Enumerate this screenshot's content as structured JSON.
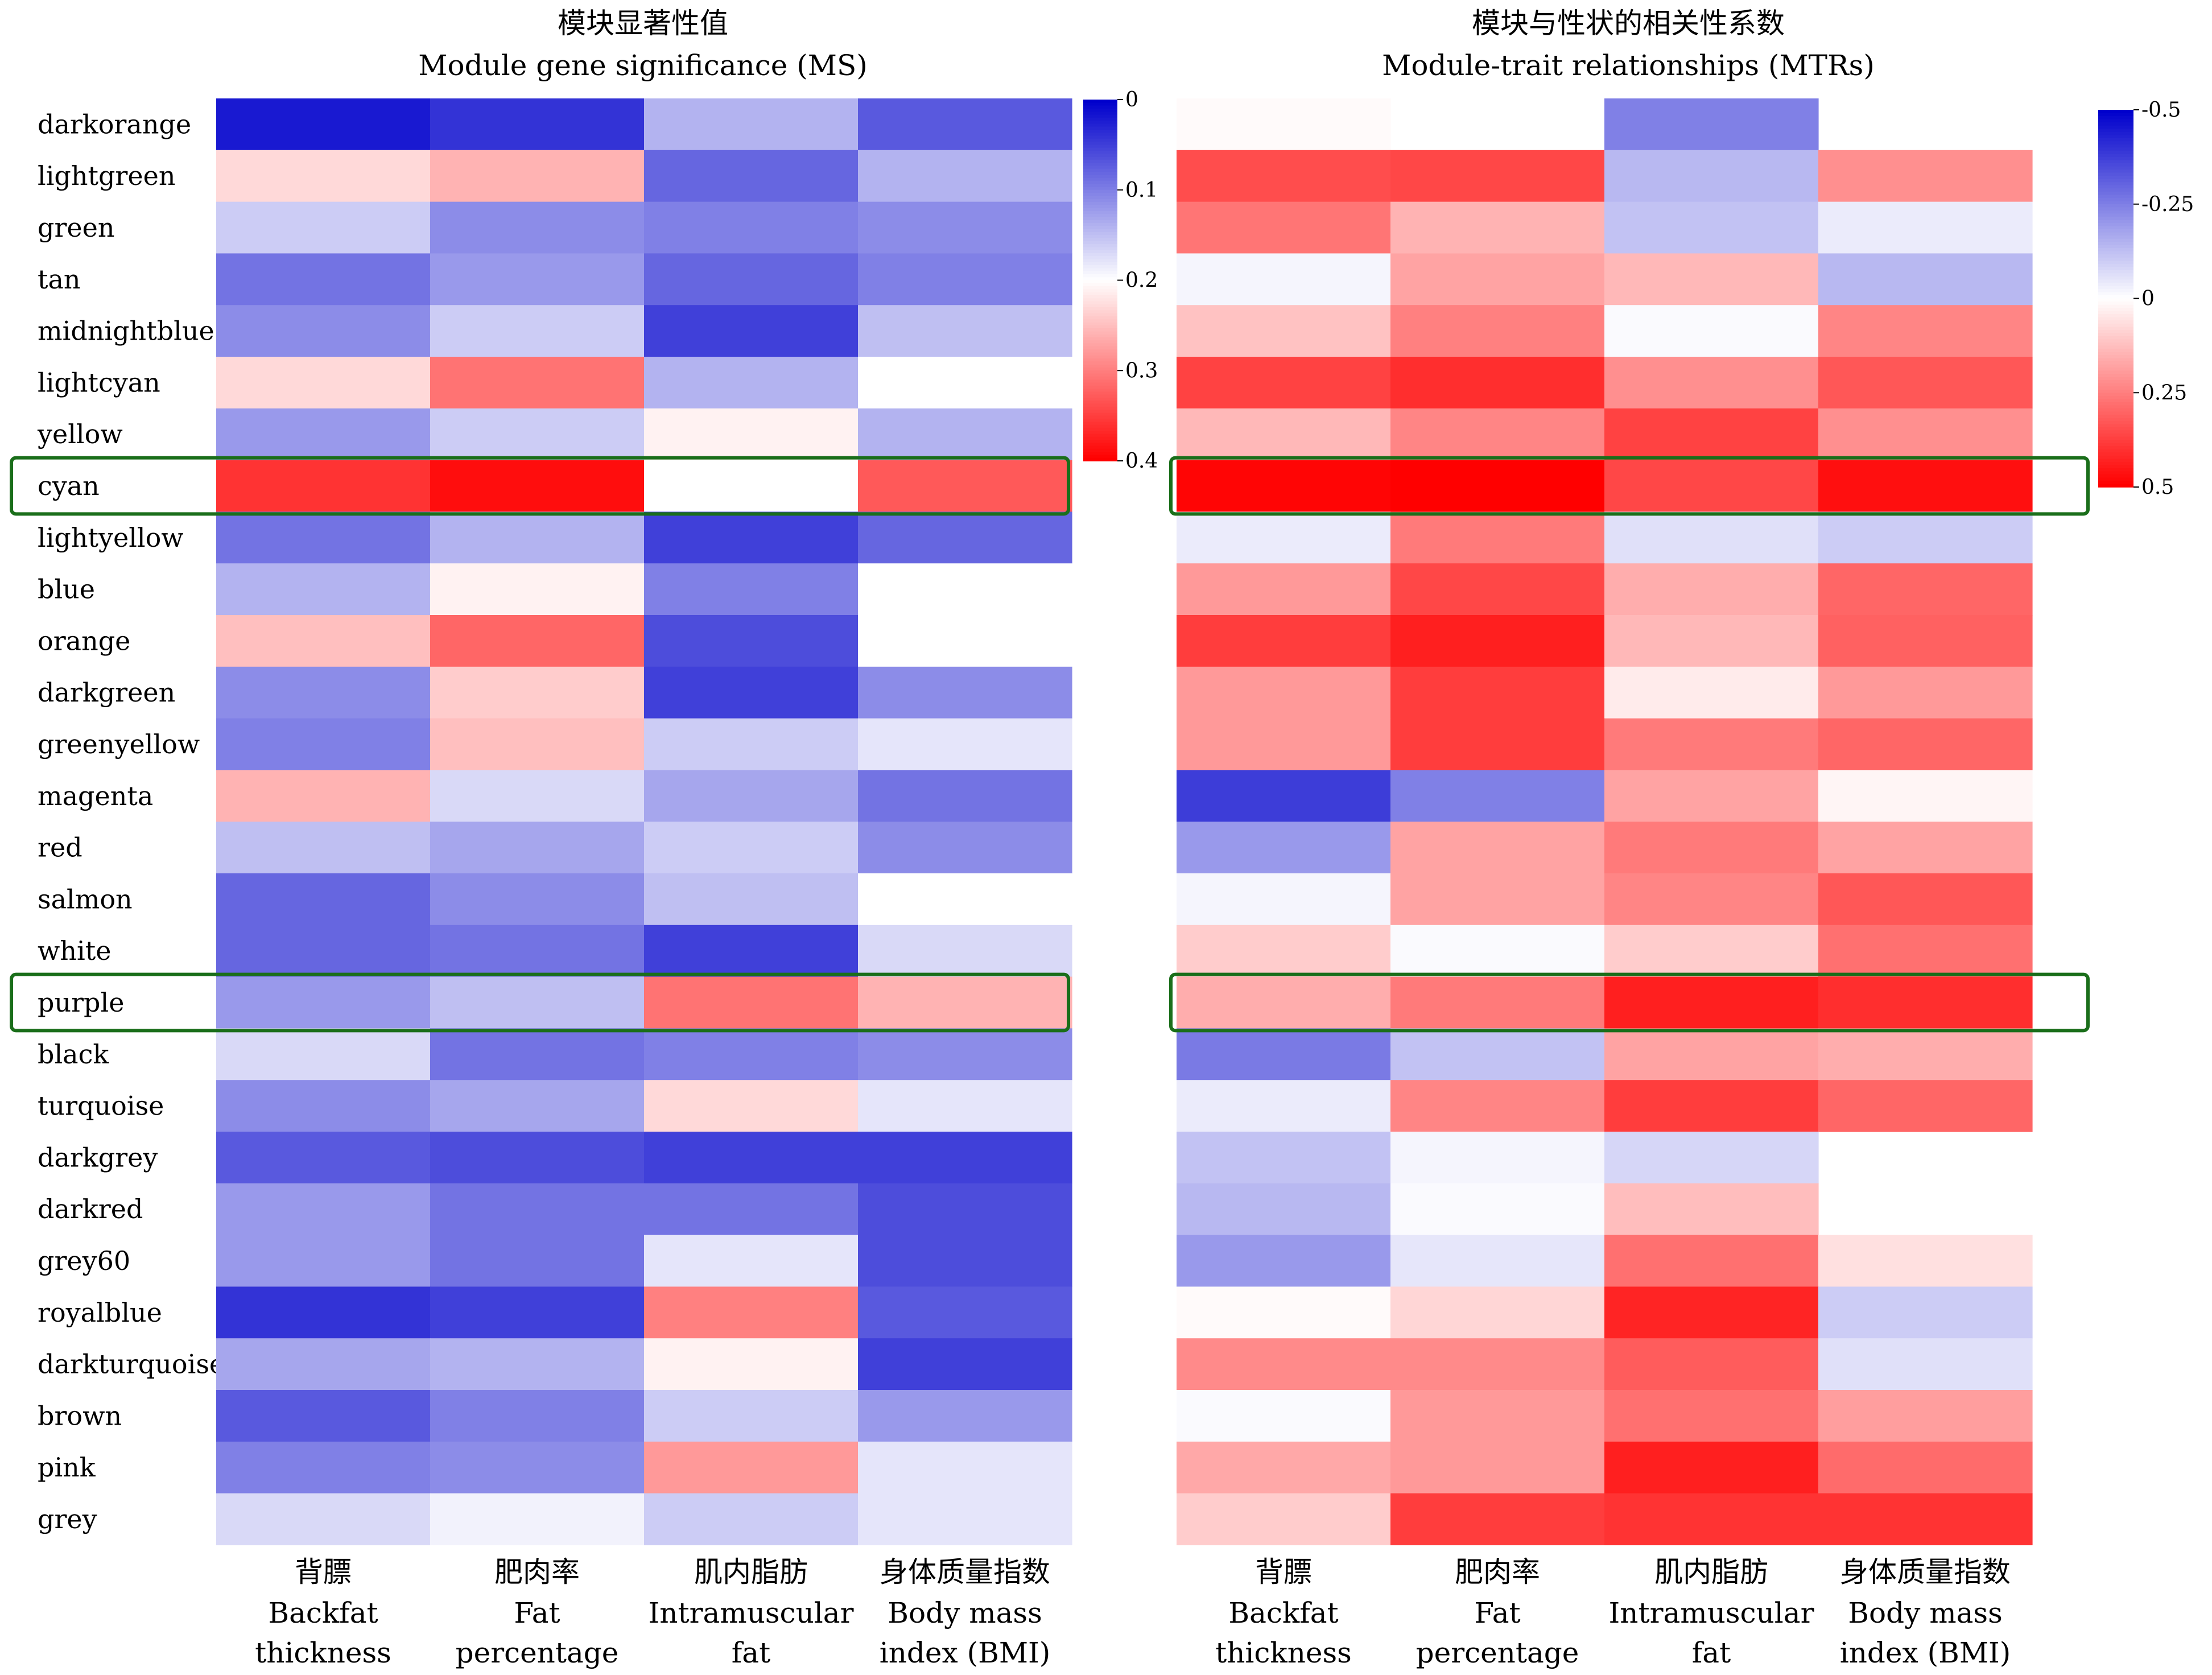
{
  "modules": [
    "darkorange",
    "lightgreen",
    "green",
    "tan",
    "midnightblue",
    "lightcyan",
    "yellow",
    "cyan",
    "lightyellow",
    "blue",
    "orange",
    "darkgreen",
    "greenyellow",
    "magenta",
    "red",
    "salmon",
    "white",
    "purple",
    "black",
    "turquoise",
    "darkgrey",
    "darkred",
    "grey60",
    "royalblue",
    "darkturquoise",
    "brown",
    "pink",
    "grey"
  ],
  "highlighted_modules": [
    "cyan",
    "purple"
  ],
  "x_labels": [
    {
      "zh": "背膘",
      "en1": "Backfat",
      "en2": "thickness"
    },
    {
      "zh": "肥肉率",
      "en1": "Fat",
      "en2": "percentage"
    },
    {
      "zh": "肌内脂肪",
      "en1": "Intramuscular",
      "en2": "fat"
    },
    {
      "zh": "身体质量指数",
      "en1": "Body mass",
      "en2": "index (BMI)"
    }
  ],
  "colors": {
    "blue": "#0000cc",
    "white": "#ffffff",
    "red": "#ff0000",
    "highlight": "#1a6e1a"
  },
  "chart_data": [
    {
      "type": "heatmap",
      "title_zh": "模块显著性值",
      "title_en": "Module gene significance (MS)",
      "colorbar": {
        "min": 0,
        "max": 0.4,
        "mid": 0.2,
        "ticks": [
          "0",
          "0.1",
          "0.2",
          "0.3",
          "0.4"
        ],
        "low_color": "blue",
        "high_color": "red"
      },
      "values": [
        [
          0.02,
          0.04,
          0.14,
          0.07
        ],
        [
          0.23,
          0.26,
          0.08,
          0.14
        ],
        [
          0.16,
          0.11,
          0.1,
          0.11
        ],
        [
          0.09,
          0.12,
          0.08,
          0.1
        ],
        [
          0.11,
          0.16,
          0.05,
          0.15
        ],
        [
          0.23,
          0.31,
          0.14,
          0.2
        ],
        [
          0.12,
          0.16,
          0.21,
          0.14
        ],
        [
          0.36,
          0.39,
          0.2,
          0.33
        ],
        [
          0.09,
          0.14,
          0.05,
          0.08
        ],
        [
          0.14,
          0.21,
          0.1,
          0.2
        ],
        [
          0.25,
          0.32,
          0.06,
          0.2
        ],
        [
          0.11,
          0.24,
          0.05,
          0.11
        ],
        [
          0.1,
          0.25,
          0.16,
          0.18
        ],
        [
          0.26,
          0.17,
          0.13,
          0.09
        ],
        [
          0.15,
          0.13,
          0.16,
          0.11
        ],
        [
          0.08,
          0.11,
          0.15,
          0.2
        ],
        [
          0.08,
          0.09,
          0.05,
          0.17
        ],
        [
          0.12,
          0.15,
          0.31,
          0.26
        ],
        [
          0.17,
          0.09,
          0.1,
          0.11
        ],
        [
          0.11,
          0.13,
          0.23,
          0.18
        ],
        [
          0.07,
          0.06,
          0.05,
          0.05
        ],
        [
          0.12,
          0.09,
          0.09,
          0.06
        ],
        [
          0.12,
          0.09,
          0.18,
          0.06
        ],
        [
          0.04,
          0.05,
          0.3,
          0.07
        ],
        [
          0.13,
          0.14,
          0.21,
          0.05
        ],
        [
          0.07,
          0.1,
          0.16,
          0.12
        ],
        [
          0.1,
          0.11,
          0.28,
          0.18
        ],
        [
          0.17,
          0.19,
          0.16,
          0.18
        ]
      ]
    },
    {
      "type": "heatmap",
      "title_zh": "模块与性状的相关性系数",
      "title_en": "Module-trait relationships (MTRs)",
      "colorbar": {
        "min": -0.5,
        "max": 0.5,
        "mid": 0,
        "ticks": [
          "-0.5",
          "-0.25",
          "0",
          "0.25",
          "0.5"
        ],
        "low_color": "blue",
        "high_color": "red"
      },
      "values": [
        [
          0.01,
          null,
          -0.25,
          null
        ],
        [
          0.35,
          0.36,
          -0.14,
          0.22
        ],
        [
          0.27,
          0.15,
          -0.12,
          -0.04
        ],
        [
          -0.02,
          0.18,
          0.14,
          -0.14
        ],
        [
          0.12,
          0.25,
          -0.01,
          0.24
        ],
        [
          0.37,
          0.41,
          0.22,
          0.33
        ],
        [
          0.14,
          0.24,
          0.37,
          0.22
        ],
        [
          0.49,
          0.5,
          0.36,
          0.47
        ],
        [
          -0.04,
          0.26,
          -0.06,
          -0.1
        ],
        [
          0.2,
          0.36,
          0.16,
          0.3
        ],
        [
          0.38,
          0.44,
          0.14,
          0.31
        ],
        [
          0.2,
          0.38,
          0.04,
          0.2
        ],
        [
          0.2,
          0.38,
          0.26,
          0.3
        ],
        [
          -0.38,
          -0.25,
          0.18,
          0.02
        ],
        [
          -0.2,
          0.18,
          0.26,
          0.18
        ],
        [
          -0.02,
          0.18,
          0.24,
          0.33
        ],
        [
          0.1,
          -0.01,
          0.1,
          0.28
        ],
        [
          0.16,
          0.26,
          0.44,
          0.41
        ],
        [
          -0.26,
          -0.12,
          0.18,
          0.16
        ],
        [
          -0.04,
          0.24,
          0.38,
          0.3
        ],
        [
          -0.12,
          -0.02,
          -0.08,
          null
        ],
        [
          -0.14,
          -0.01,
          0.13,
          null
        ],
        [
          -0.2,
          -0.05,
          0.28,
          0.06
        ],
        [
          0.01,
          0.08,
          0.43,
          -0.1
        ],
        [
          0.23,
          0.23,
          0.32,
          -0.06
        ],
        [
          -0.01,
          0.2,
          0.28,
          0.19
        ],
        [
          0.17,
          0.2,
          0.44,
          0.29
        ],
        [
          0.1,
          0.38,
          0.4,
          0.4
        ]
      ]
    }
  ]
}
